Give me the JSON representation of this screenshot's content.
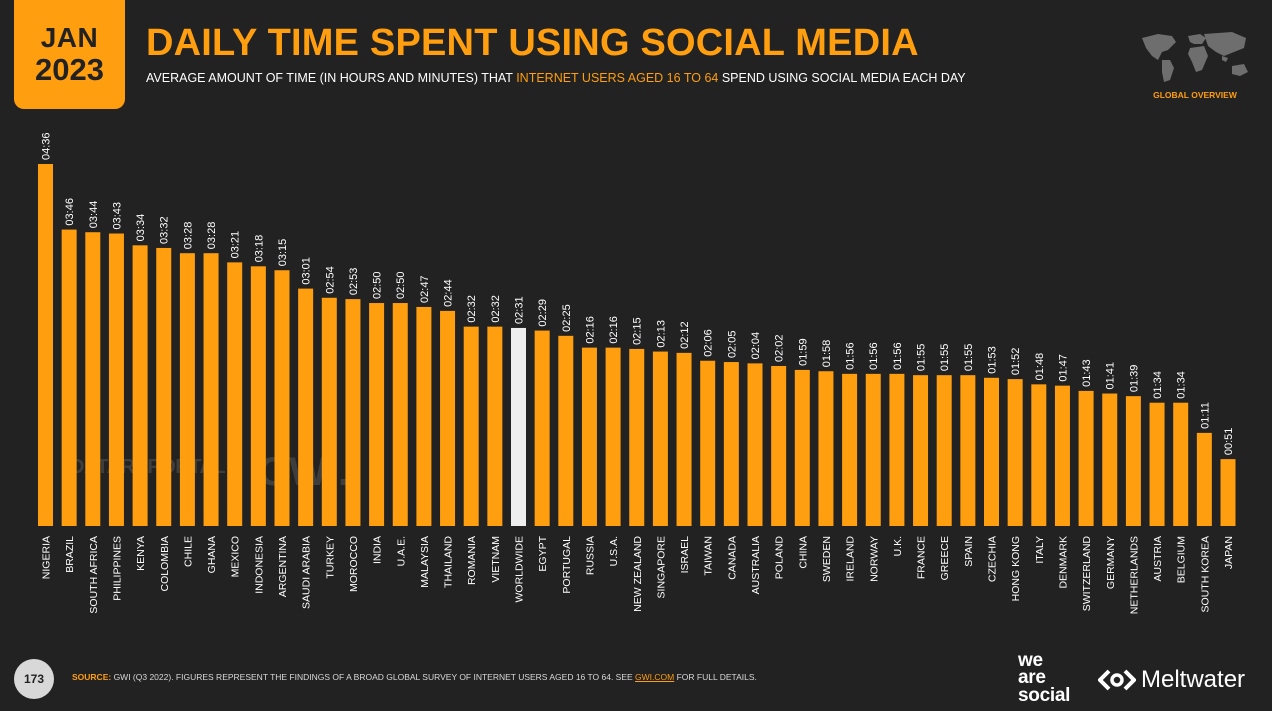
{
  "header": {
    "month": "JAN",
    "year": "2023",
    "title": "DAILY TIME SPENT USING SOCIAL MEDIA",
    "subtitle_pre": "AVERAGE AMOUNT OF TIME (IN HOURS AND MINUTES) THAT ",
    "subtitle_highlight": "INTERNET USERS AGED 16 TO 64",
    "subtitle_post": " SPEND USING SOCIAL MEDIA EACH DAY",
    "section": "GLOBAL OVERVIEW"
  },
  "watermarks": {
    "datareportal": "DATAREPORTAL",
    "gwi": "GWI."
  },
  "footer": {
    "page_number": "173",
    "source_label": "SOURCE:",
    "source_text": " GWI (Q3 2022). FIGURES REPRESENT THE FINDINGS OF A BROAD GLOBAL SURVEY OF INTERNET USERS AGED 16 TO 64. SEE ",
    "source_link": "GWI.COM",
    "source_end": " FOR FULL DETAILS.",
    "brand1_line1": "we",
    "brand1_line2": "are",
    "brand1_line3": "social",
    "brand2": "Meltwater"
  },
  "colors": {
    "accent": "#ff9e0f",
    "highlight_bar": "#eeeeee",
    "background": "#222222"
  },
  "chart_data": {
    "type": "bar",
    "categories": [
      "NIGERIA",
      "BRAZIL",
      "SOUTH AFRICA",
      "PHILIPPINES",
      "KENYA",
      "COLOMBIA",
      "CHILE",
      "GHANA",
      "MEXICO",
      "INDONESIA",
      "ARGENTINA",
      "SAUDI ARABIA",
      "TURKEY",
      "MOROCCO",
      "INDIA",
      "U.A.E.",
      "MALAYSIA",
      "THAILAND",
      "ROMANIA",
      "VIETNAM",
      "WORLDWIDE",
      "EGYPT",
      "PORTUGAL",
      "RUSSIA",
      "U.S.A.",
      "NEW ZEALAND",
      "SINGAPORE",
      "ISRAEL",
      "TAIWAN",
      "CANADA",
      "AUSTRALIA",
      "POLAND",
      "CHINA",
      "SWEDEN",
      "IRELAND",
      "NORWAY",
      "U.K.",
      "FRANCE",
      "GREECE",
      "SPAIN",
      "CZECHIA",
      "HONG KONG",
      "ITALY",
      "DENMARK",
      "SWITZERLAND",
      "GERMANY",
      "NETHERLANDS",
      "AUSTRIA",
      "BELGIUM",
      "SOUTH KOREA",
      "JAPAN"
    ],
    "labels": [
      "04:36",
      "03:46",
      "03:44",
      "03:43",
      "03:34",
      "03:32",
      "03:28",
      "03:28",
      "03:21",
      "03:18",
      "03:15",
      "03:01",
      "02:54",
      "02:53",
      "02:50",
      "02:50",
      "02:47",
      "02:44",
      "02:32",
      "02:32",
      "02:31",
      "02:29",
      "02:25",
      "02:16",
      "02:16",
      "02:15",
      "02:13",
      "02:12",
      "02:06",
      "02:05",
      "02:04",
      "02:02",
      "01:59",
      "01:58",
      "01:56",
      "01:56",
      "01:56",
      "01:55",
      "01:55",
      "01:55",
      "01:53",
      "01:52",
      "01:48",
      "01:47",
      "01:43",
      "01:41",
      "01:39",
      "01:34",
      "01:34",
      "01:11",
      "00:51"
    ],
    "values_minutes": [
      276,
      226,
      224,
      223,
      214,
      212,
      208,
      208,
      201,
      198,
      195,
      181,
      174,
      173,
      170,
      170,
      167,
      164,
      152,
      152,
      151,
      149,
      145,
      136,
      136,
      135,
      133,
      132,
      126,
      125,
      124,
      122,
      119,
      118,
      116,
      116,
      116,
      115,
      115,
      115,
      113,
      112,
      108,
      107,
      103,
      101,
      99,
      94,
      94,
      71,
      51
    ],
    "highlight": "WORLDWIDE",
    "ylim": [
      0,
      276
    ]
  }
}
